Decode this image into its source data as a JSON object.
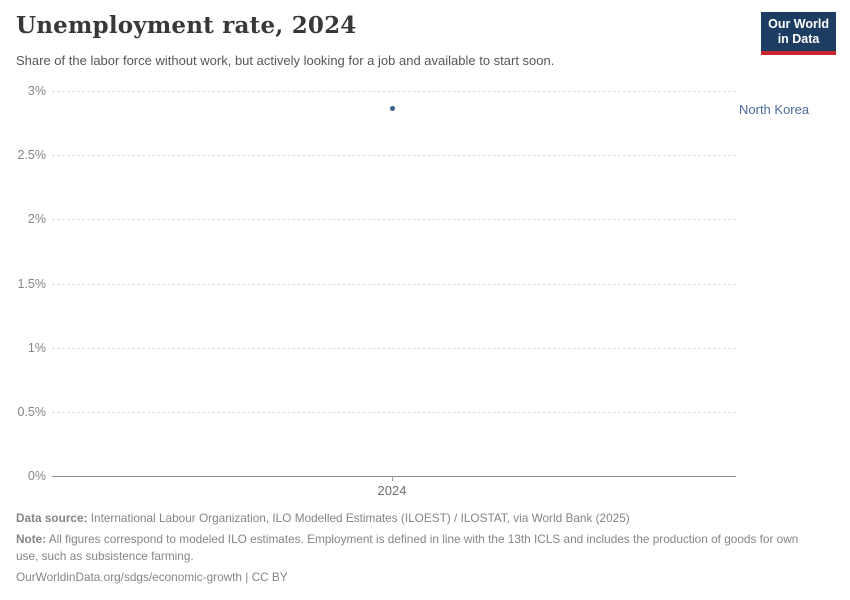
{
  "header": {
    "title": "Unemployment rate, 2024",
    "subtitle": "Share of the labor force without work, but actively looking for a job and available to start soon.",
    "logo": {
      "line1": "Our World",
      "line2": "in Data",
      "bg_color": "#1d3d63",
      "accent_color": "#c8282d"
    }
  },
  "chart": {
    "entity_label": "North Korea",
    "entity_color": "#4c6a9c",
    "x_tick_label": "2024",
    "y_tick_labels": [
      "3%",
      "2.5%",
      "2%",
      "1.5%",
      "1%",
      "0.5%",
      "0%"
    ]
  },
  "chart_data": {
    "type": "scatter",
    "title": "Unemployment rate, 2024",
    "subtitle": "Share of the labor force without work, but actively looking for a job and available to start soon.",
    "series": [
      {
        "name": "North Korea",
        "x": [
          2024
        ],
        "y": [
          2.86
        ]
      }
    ],
    "xticks": [
      2024
    ],
    "yticks": [
      3,
      2.5,
      2,
      1.5,
      1,
      0.5,
      0
    ],
    "ylim": [
      0,
      3
    ],
    "ytick_suffix": "%",
    "xlabel": "",
    "ylabel": "",
    "grid": "horizontal-dashed",
    "legend_position": "entity-label-right",
    "point_color": "#3d5c8f"
  },
  "footer": {
    "data_source_label": "Data source:",
    "data_source_text": " International Labour Organization, ILO Modelled Estimates (ILOEST) / ILOSTAT, via World Bank (2025)",
    "note_label": "Note:",
    "note_text": " All figures correspond to modeled ILO estimates. Employment is defined in line with the 13th ICLS and includes the production of goods for own use, such as subsistence farming.",
    "url": "OurWorldinData.org/sdgs/economic-growth",
    "separator": " | ",
    "license": "CC BY"
  }
}
